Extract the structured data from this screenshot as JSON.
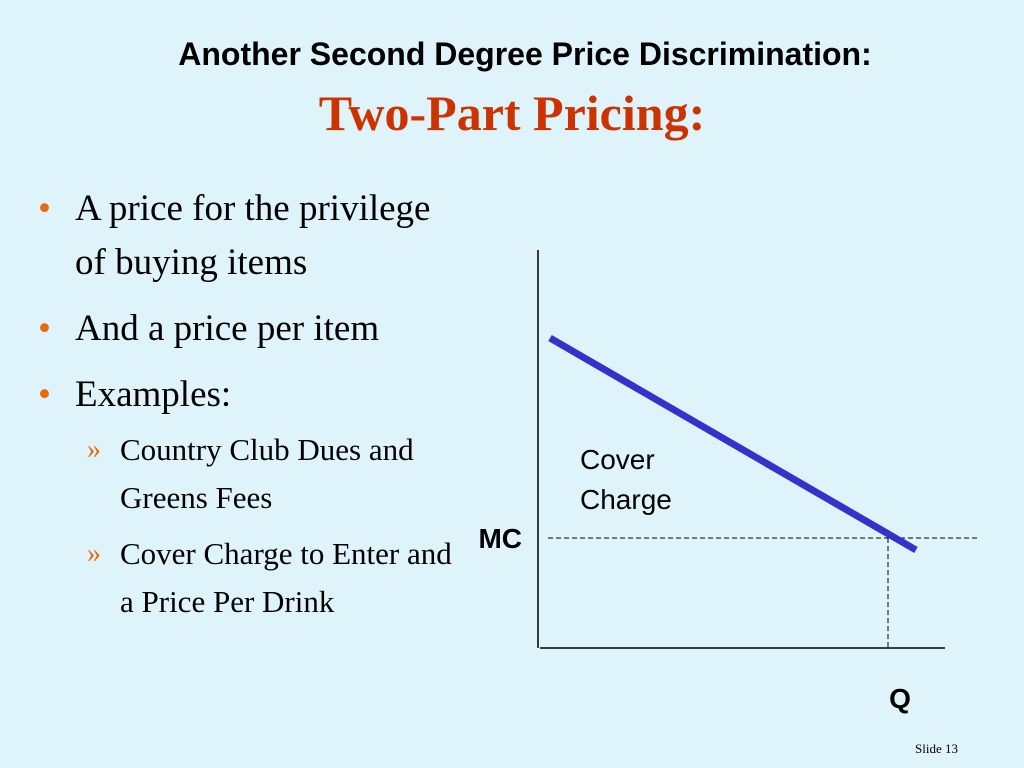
{
  "header": {
    "title": "Another Second Degree Price Discrimination:",
    "subtitle": "Two-Part Pricing:"
  },
  "bullets": [
    {
      "text": "A price for the privilege of buying items"
    },
    {
      "text": "And a price per item"
    },
    {
      "text": "Examples:",
      "sub": [
        "Country Club Dues and Greens Fees",
        "Cover Charge to Enter and a Price Per Drink"
      ]
    }
  ],
  "diagram": {
    "area_label": "Cover Charge",
    "price_label": "MC",
    "quantity_label": "Q"
  },
  "footer": {
    "slide": "Slide 13"
  }
}
